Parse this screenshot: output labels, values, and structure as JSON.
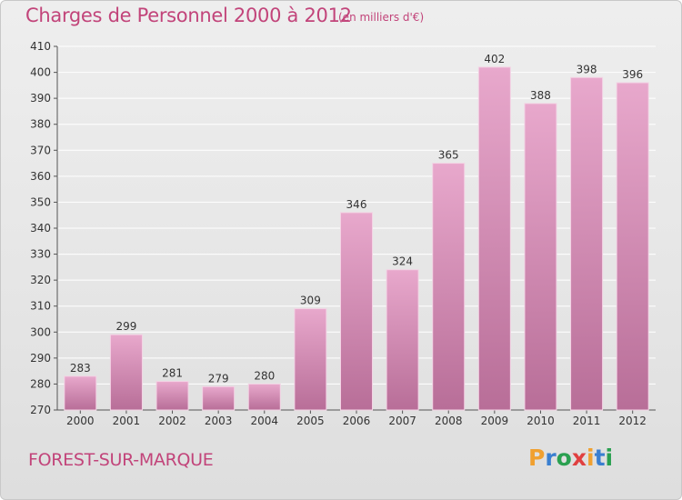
{
  "header": {
    "title": "Charges de Personnel 2000 à 2012",
    "subtitle": "(en milliers d'€)"
  },
  "footer": {
    "city": "FOREST-SUR-MARQUE",
    "logo": {
      "text": "Proxiti",
      "letter_colors": [
        "#f0a030",
        "#3a7fd0",
        "#2aa050",
        "#e04040",
        "#f0a030",
        "#3a7fd0",
        "#2aa050"
      ]
    }
  },
  "colors": {
    "title": "#c2447a",
    "bar_top": "#e8a8cc",
    "bar_bottom": "#b86e98",
    "axis_text": "#333333",
    "grid": "#ffffff"
  },
  "chart_data": {
    "type": "bar",
    "categories": [
      "2000",
      "2001",
      "2002",
      "2003",
      "2004",
      "2005",
      "2006",
      "2007",
      "2008",
      "2009",
      "2010",
      "2011",
      "2012"
    ],
    "values": [
      283,
      299,
      281,
      279,
      280,
      309,
      346,
      324,
      365,
      402,
      388,
      398,
      396
    ],
    "data_labels": [
      "283",
      "299",
      "281",
      "279",
      "280",
      "309",
      "346",
      "324",
      "365",
      "402",
      "388",
      "398",
      "396"
    ],
    "ylim": [
      270,
      410
    ],
    "yticks": [
      270,
      280,
      290,
      300,
      310,
      320,
      330,
      340,
      350,
      360,
      370,
      380,
      390,
      400,
      410
    ],
    "grid": true
  }
}
